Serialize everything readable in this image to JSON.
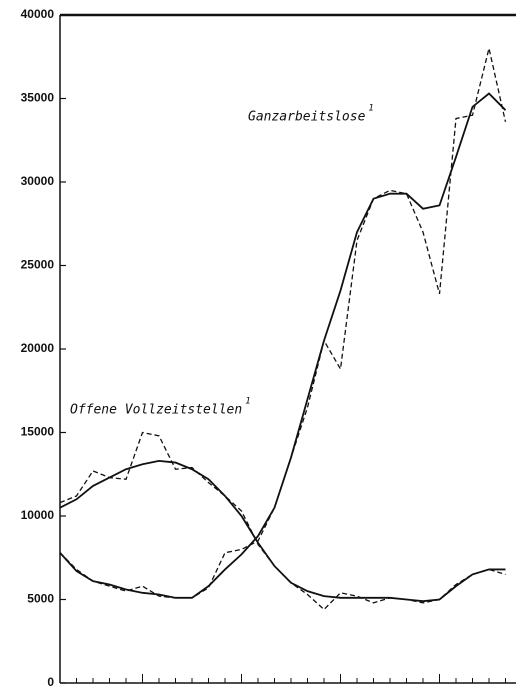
{
  "chart_data": {
    "type": "line",
    "annotations": [
      {
        "text": "Ganzarbeitslose",
        "note": "1"
      },
      {
        "text": "Offene Vollzeitstellen",
        "note": "1"
      }
    ],
    "categories": [
      null,
      null,
      null,
      null,
      null,
      null,
      null,
      null,
      null,
      null,
      null,
      null,
      null,
      null,
      null,
      null,
      null,
      null,
      null,
      null,
      null,
      null,
      null,
      null,
      null,
      null,
      null,
      null
    ],
    "series": [
      {
        "color": "#111111",
        "dashed": false,
        "values": [
          10500,
          11000,
          11800,
          12300,
          12800,
          13100,
          13300,
          13200,
          12800,
          12200,
          11200,
          10000,
          8400,
          7000,
          6000,
          5500,
          5200,
          5100,
          5100,
          5100,
          5100,
          5000,
          4900,
          5000,
          5800,
          6500,
          6800,
          6800
        ]
      },
      {
        "color": "#111111",
        "dashed": true,
        "values": [
          10800,
          11200,
          12700,
          12300,
          12200,
          15000,
          14800,
          12800,
          12900,
          12000,
          11200,
          10300,
          8300,
          7000,
          6000,
          5300,
          4400,
          5400,
          5200,
          4800,
          5100,
          5000,
          4800,
          5000,
          5900,
          6500,
          6800,
          6500
        ]
      },
      {
        "color": "#111111",
        "dashed": false,
        "values": [
          7800,
          6700,
          6100,
          5900,
          5600,
          5400,
          5300,
          5100,
          5100,
          5800,
          6800,
          7700,
          8800,
          10500,
          13500,
          17000,
          20500,
          23500,
          27000,
          29000,
          29300,
          29300,
          28400,
          28600,
          31500,
          34500,
          35300,
          34300
        ]
      },
      {
        "color": "#111111",
        "dashed": true,
        "values": [
          7800,
          6800,
          6100,
          5800,
          5500,
          5800,
          5200,
          5100,
          5100,
          5700,
          7800,
          8000,
          8500,
          10500,
          13500,
          16500,
          20500,
          18800,
          26500,
          29000,
          29500,
          29300,
          27000,
          23300,
          33800,
          34000,
          38000,
          33600
        ]
      }
    ],
    "ylim": [
      0,
      40000
    ],
    "yticks": [
      0,
      5000,
      10000,
      15000,
      20000,
      25000,
      30000,
      35000,
      40000
    ],
    "grid": false
  }
}
